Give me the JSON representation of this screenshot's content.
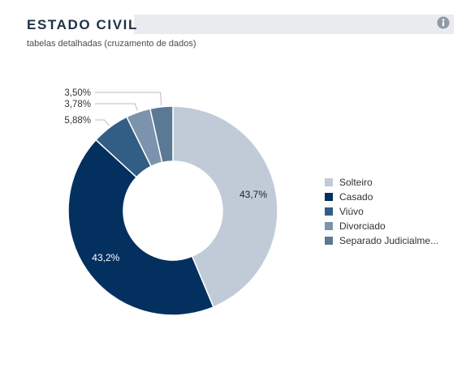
{
  "header": {
    "title": "ESTADO CIVIL",
    "subtitle": "tabelas detalhadas (cruzamento de dados)",
    "info_icon": "info-circle-icon"
  },
  "chart_data": {
    "type": "pie",
    "donut": true,
    "title": "ESTADO CIVIL",
    "legend_position": "right",
    "slices": [
      {
        "name": "Solteiro",
        "display": "Solteiro",
        "value": 43.7,
        "label": "43,7%",
        "color": "#c1cbd8",
        "label_color": "#222222",
        "label_placement": "inside"
      },
      {
        "name": "Casado",
        "display": "Casado",
        "value": 43.2,
        "label": "43,2%",
        "color": "#03305f",
        "label_color": "#ffffff",
        "label_placement": "inside"
      },
      {
        "name": "Viúvo",
        "display": "Viúvo",
        "value": 5.88,
        "label": "5,88%",
        "color": "#325d84",
        "label_color": "#333333",
        "label_placement": "outside"
      },
      {
        "name": "Divorciado",
        "display": "Divorciado",
        "value": 3.78,
        "label": "3,78%",
        "color": "#7c93ad",
        "label_color": "#333333",
        "label_placement": "outside"
      },
      {
        "name": "Separado Judicialmente",
        "display": "Separado Judicialme...",
        "value": 3.5,
        "label": "3,50%",
        "color": "#5b7894",
        "label_color": "#333333",
        "label_placement": "outside"
      }
    ]
  }
}
